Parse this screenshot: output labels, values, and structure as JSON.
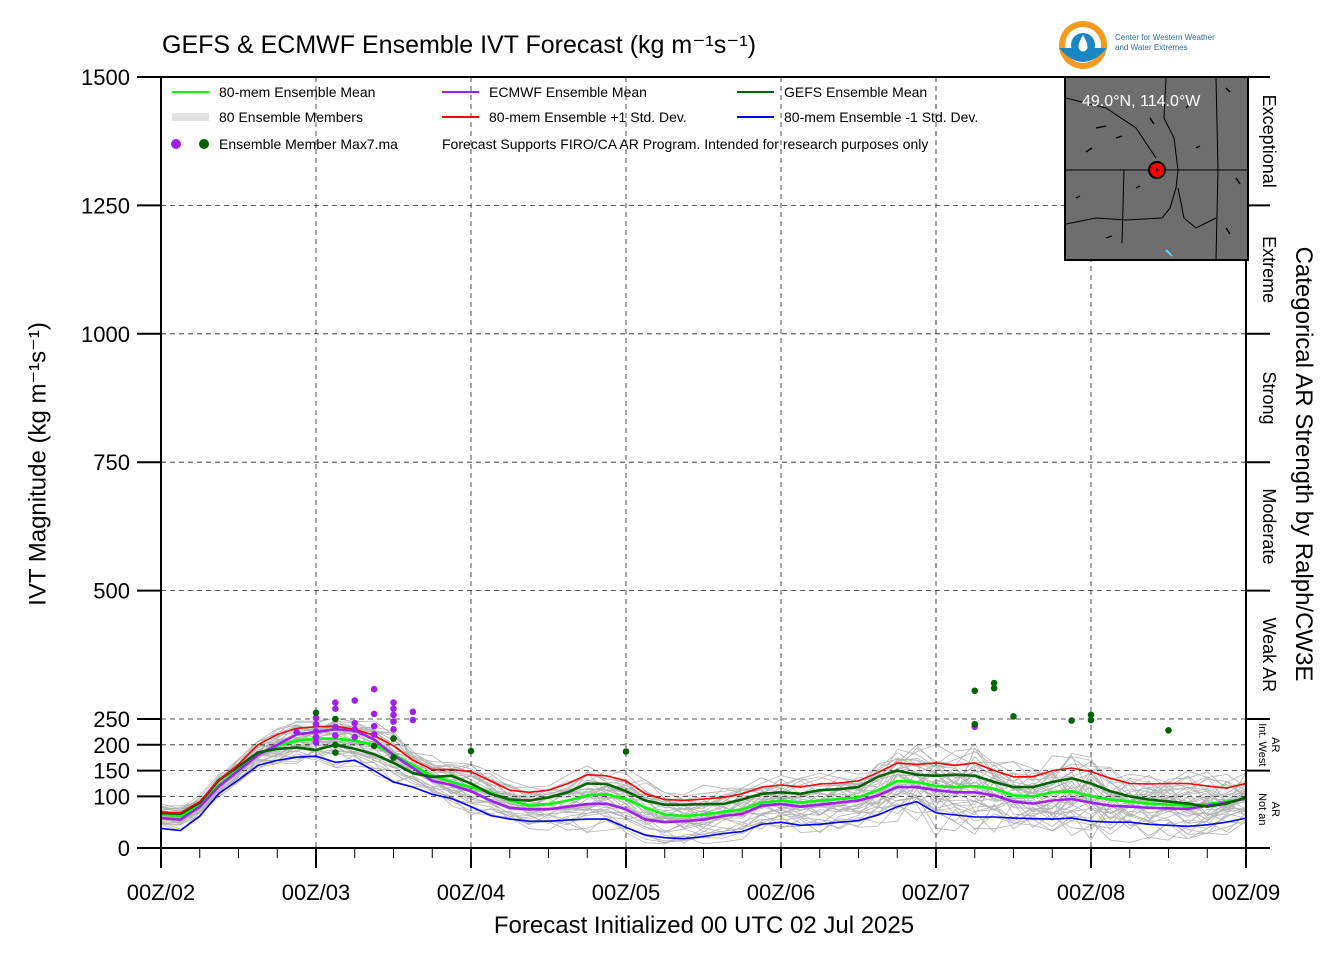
{
  "chart_data": {
    "type": "line",
    "title": "GEFS & ECMWF Ensemble IVT Forecast (kg m⁻¹s⁻¹)",
    "ylabel": "IVT Magnitude (kg m⁻¹s⁻¹)",
    "xlabel": "Forecast Initialized 00 UTC 02 Jul 2025",
    "right_label": "Categorical AR Strength by Ralph/CW3E",
    "ylim": [
      0,
      1500
    ],
    "yticks": [
      0,
      100,
      150,
      200,
      250,
      500,
      750,
      1000,
      1250,
      1500
    ],
    "xlim": [
      0,
      168
    ],
    "xticks": [
      0,
      24,
      48,
      72,
      96,
      120,
      144,
      168
    ],
    "xtick_labels": [
      "00Z/02",
      "00Z/03",
      "00Z/04",
      "00Z/05",
      "00Z/06",
      "00Z/07",
      "00Z/08",
      "00Z/09"
    ],
    "grid": true,
    "legend_position": "top-left",
    "legend": [
      {
        "label": "80-mem Ensemble Mean",
        "color": "#00ff00"
      },
      {
        "label": "ECMWF Ensemble Mean",
        "color": "#a020f0"
      },
      {
        "label": "GEFS Ensemble Mean",
        "color": "#006400"
      },
      {
        "label": "80 Ensemble Members",
        "color": "#b0b0b0"
      },
      {
        "label": "80-mem Ensemble +1 Std. Dev.",
        "color": "#ff0000"
      },
      {
        "label": "80-mem Ensemble -1 Std. Dev.",
        "color": "#0000ff"
      },
      {
        "label": "Ensemble Member Max7.ma",
        "color": "#a020f0"
      }
    ],
    "note": "Forecast Supports FIRO/CA AR Program. Intended for research purposes only",
    "categories": [
      {
        "label": "Exceptional",
        "from": 1250,
        "to": 1500
      },
      {
        "label": "Extreme",
        "from": 1000,
        "to": 1250
      },
      {
        "label": "Strong",
        "from": 750,
        "to": 1000
      },
      {
        "label": "Moderate",
        "from": 500,
        "to": 750
      },
      {
        "label": "Weak AR",
        "from": 250,
        "to": 500
      },
      {
        "label": "Int. West AR",
        "from": 150,
        "to": 250
      },
      {
        "label": "Not an AR",
        "from": 0,
        "to": 150
      }
    ],
    "x": [
      0,
      3,
      6,
      9,
      12,
      15,
      18,
      21,
      24,
      27,
      30,
      33,
      36,
      39,
      42,
      45,
      48,
      51,
      54,
      57,
      60,
      63,
      66,
      69,
      72,
      75,
      78,
      81,
      84,
      87,
      90,
      93,
      96,
      99,
      102,
      105,
      108,
      111,
      114,
      117,
      120,
      123,
      126,
      129,
      132,
      135,
      138,
      141,
      144,
      147,
      150,
      153,
      156,
      159,
      162,
      165,
      168
    ],
    "series": [
      {
        "name": "80-mem Ensemble Mean",
        "color": "#00ff00",
        "values": [
          65,
          62,
          82,
          122,
          152,
          182,
          198,
          208,
          212,
          212,
          208,
          200,
          182,
          160,
          140,
          128,
          118,
          108,
          92,
          82,
          85,
          92,
          102,
          104,
          95,
          78,
          65,
          62,
          65,
          70,
          75,
          88,
          92,
          88,
          92,
          95,
          98,
          112,
          130,
          128,
          120,
          118,
          120,
          115,
          102,
          100,
          108,
          110,
          100,
          94,
          90,
          86,
          84,
          82,
          85,
          90,
          95
        ]
      },
      {
        "name": "ECMWF Ensemble Mean",
        "color": "#a020f0",
        "values": [
          58,
          55,
          80,
          120,
          150,
          180,
          200,
          220,
          225,
          230,
          228,
          210,
          180,
          155,
          130,
          122,
          110,
          92,
          78,
          75,
          75,
          80,
          85,
          86,
          75,
          55,
          50,
          52,
          55,
          62,
          66,
          82,
          85,
          80,
          84,
          88,
          92,
          102,
          118,
          118,
          112,
          108,
          108,
          102,
          90,
          86,
          92,
          95,
          88,
          82,
          80,
          78,
          77,
          76,
          82,
          88,
          96
        ]
      },
      {
        "name": "GEFS Ensemble Mean",
        "color": "#006400",
        "values": [
          68,
          66,
          88,
          132,
          158,
          185,
          192,
          195,
          190,
          200,
          192,
          182,
          165,
          145,
          138,
          140,
          125,
          105,
          94,
          92,
          98,
          108,
          125,
          124,
          110,
          92,
          84,
          84,
          85,
          85,
          94,
          105,
          108,
          105,
          112,
          114,
          118,
          138,
          150,
          142,
          140,
          142,
          140,
          128,
          118,
          118,
          128,
          135,
          125,
          110,
          100,
          94,
          90,
          86,
          80,
          86,
          98
        ]
      },
      {
        "name": "80-mem Ensemble +1 Std. Dev.",
        "color": "#ff0000",
        "values": [
          70,
          68,
          90,
          132,
          162,
          200,
          220,
          232,
          235,
          236,
          230,
          218,
          198,
          170,
          152,
          152,
          148,
          130,
          112,
          108,
          112,
          125,
          142,
          140,
          130,
          105,
          94,
          92,
          95,
          98,
          105,
          118,
          122,
          118,
          124,
          126,
          130,
          146,
          165,
          162,
          165,
          160,
          165,
          150,
          138,
          138,
          150,
          155,
          148,
          135,
          125,
          124,
          125,
          125,
          120,
          116,
          125
        ]
      },
      {
        "name": "80-mem Ensemble -1 Std. Dev.",
        "color": "#0000ff",
        "values": [
          38,
          34,
          62,
          106,
          132,
          160,
          170,
          176,
          178,
          166,
          170,
          150,
          128,
          118,
          104,
          96,
          80,
          63,
          56,
          52,
          52,
          54,
          56,
          56,
          40,
          25,
          20,
          18,
          22,
          28,
          32,
          46,
          50,
          44,
          46,
          50,
          53,
          64,
          80,
          90,
          68,
          64,
          60,
          60,
          58,
          57,
          56,
          58,
          52,
          50,
          50,
          46,
          44,
          42,
          45,
          50,
          58
        ]
      }
    ],
    "member_max_points": [
      {
        "x": 21,
        "y": 225,
        "color": "#a020f0"
      },
      {
        "x": 24,
        "y": 205,
        "color": "#a020f0"
      },
      {
        "x": 24,
        "y": 215,
        "color": "#a020f0"
      },
      {
        "x": 24,
        "y": 226,
        "color": "#a020f0"
      },
      {
        "x": 24,
        "y": 240,
        "color": "#a020f0"
      },
      {
        "x": 24,
        "y": 252,
        "color": "#a020f0"
      },
      {
        "x": 24,
        "y": 262,
        "color": "#006400"
      },
      {
        "x": 27,
        "y": 185,
        "color": "#006400"
      },
      {
        "x": 27,
        "y": 200,
        "color": "#006400"
      },
      {
        "x": 27,
        "y": 218,
        "color": "#a020f0"
      },
      {
        "x": 27,
        "y": 235,
        "color": "#a020f0"
      },
      {
        "x": 27,
        "y": 250,
        "color": "#006400"
      },
      {
        "x": 27,
        "y": 270,
        "color": "#a020f0"
      },
      {
        "x": 27,
        "y": 282,
        "color": "#a020f0"
      },
      {
        "x": 30,
        "y": 215,
        "color": "#a020f0"
      },
      {
        "x": 30,
        "y": 230,
        "color": "#a020f0"
      },
      {
        "x": 30,
        "y": 242,
        "color": "#a020f0"
      },
      {
        "x": 30,
        "y": 286,
        "color": "#a020f0"
      },
      {
        "x": 33,
        "y": 198,
        "color": "#006400"
      },
      {
        "x": 33,
        "y": 220,
        "color": "#a020f0"
      },
      {
        "x": 33,
        "y": 236,
        "color": "#a020f0"
      },
      {
        "x": 33,
        "y": 260,
        "color": "#a020f0"
      },
      {
        "x": 33,
        "y": 308,
        "color": "#a020f0"
      },
      {
        "x": 36,
        "y": 175,
        "color": "#006400"
      },
      {
        "x": 36,
        "y": 212,
        "color": "#006400"
      },
      {
        "x": 36,
        "y": 230,
        "color": "#a020f0"
      },
      {
        "x": 36,
        "y": 245,
        "color": "#a020f0"
      },
      {
        "x": 36,
        "y": 258,
        "color": "#a020f0"
      },
      {
        "x": 36,
        "y": 270,
        "color": "#a020f0"
      },
      {
        "x": 36,
        "y": 282,
        "color": "#a020f0"
      },
      {
        "x": 39,
        "y": 248,
        "color": "#a020f0"
      },
      {
        "x": 39,
        "y": 264,
        "color": "#a020f0"
      },
      {
        "x": 48,
        "y": 188,
        "color": "#006400"
      },
      {
        "x": 72,
        "y": 187,
        "color": "#006400"
      },
      {
        "x": 126,
        "y": 235,
        "color": "#a020f0"
      },
      {
        "x": 126,
        "y": 240,
        "color": "#006400"
      },
      {
        "x": 126,
        "y": 305,
        "color": "#006400"
      },
      {
        "x": 129,
        "y": 310,
        "color": "#006400"
      },
      {
        "x": 129,
        "y": 320,
        "color": "#006400"
      },
      {
        "x": 132,
        "y": 255,
        "color": "#006400"
      },
      {
        "x": 141,
        "y": 247,
        "color": "#006400"
      },
      {
        "x": 144,
        "y": 248,
        "color": "#006400"
      },
      {
        "x": 144,
        "y": 258,
        "color": "#006400"
      },
      {
        "x": 156,
        "y": 228,
        "color": "#006400"
      }
    ]
  },
  "logo": {
    "line1": "Center for Western Weather",
    "line2": "and Water Extremes"
  },
  "inset_map": {
    "coordinates": "49.0°N, 114.0°W",
    "marker_color": "#ff0000"
  }
}
